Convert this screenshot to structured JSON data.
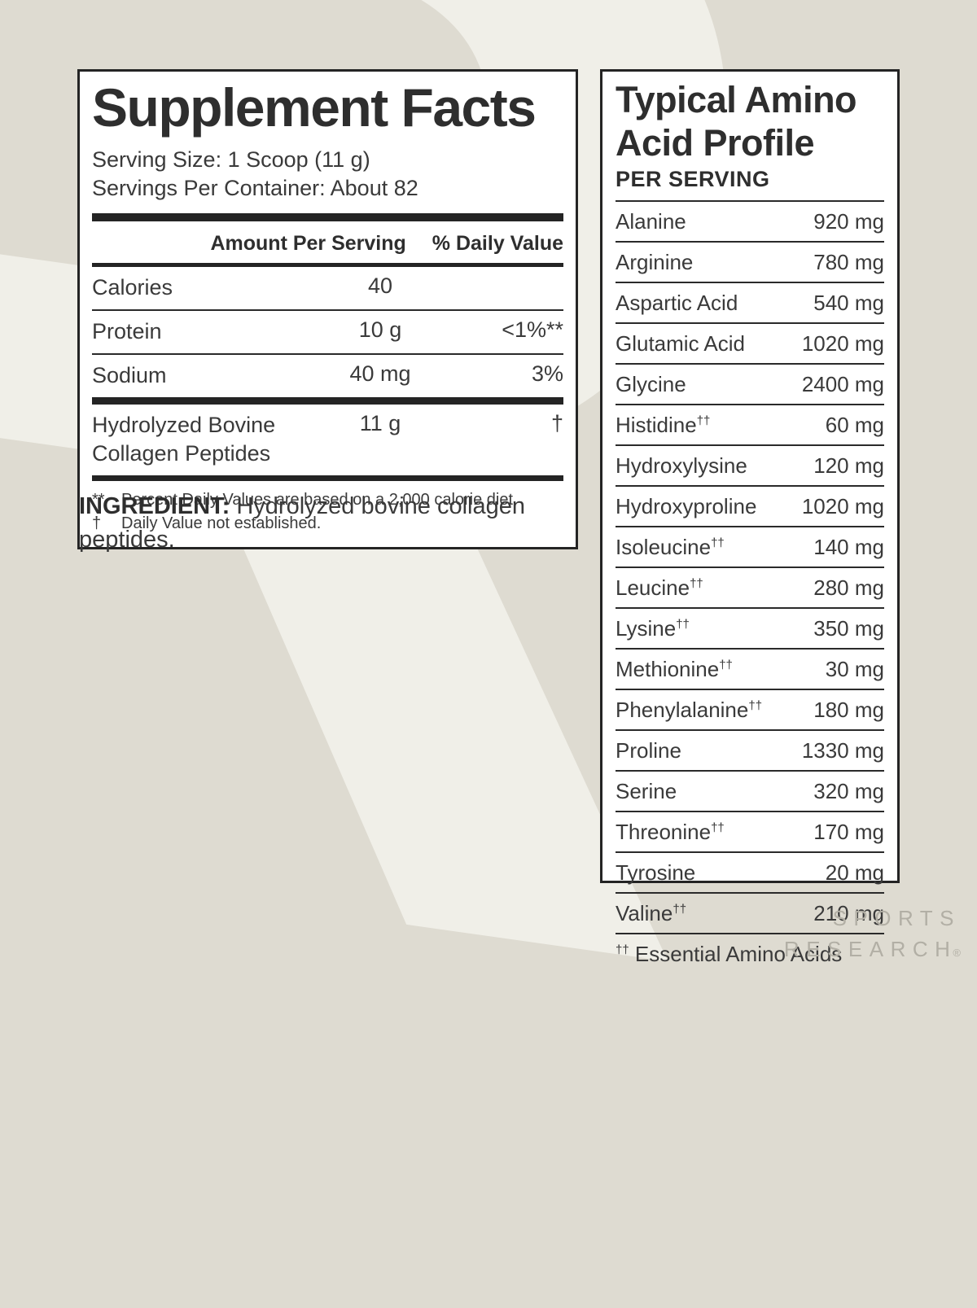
{
  "background": {
    "color": "#dedbd1",
    "watermark_letter": "R",
    "watermark_color": "#f0efe8",
    "panel_border_color": "#242424",
    "text_color": "#3a3a3a",
    "logo_color": "#b2afa5"
  },
  "supplement_facts": {
    "title": "Supplement Facts",
    "serving_size": "Serving Size: 1 Scoop (11 g)",
    "servings_per_container": "Servings Per Container: About 82",
    "header": {
      "amount": "Amount Per Serving",
      "daily_value": "% Daily Value"
    },
    "rows": [
      {
        "name": "Calories",
        "amount": "40",
        "dv": ""
      },
      {
        "name": "Protein",
        "amount": "10 g",
        "dv": "<1%**"
      },
      {
        "name": "Sodium",
        "amount": "40 mg",
        "dv": "3%"
      },
      {
        "name": "Hydrolyzed Bovine Collagen Peptides",
        "amount": "11 g",
        "dv": "†",
        "emphasis_divider": true
      }
    ],
    "footnotes": [
      {
        "marker": "**",
        "text": "Percent Daily Values are based on a 2,000 calorie diet."
      },
      {
        "marker": "†",
        "text": "Daily Value not established."
      }
    ]
  },
  "ingredient": {
    "label": "INGREDIENT:",
    "text": "Hydrolyzed bovine collagen peptides."
  },
  "amino_profile": {
    "title_line1": "Typical Amino",
    "title_line2": "Acid Profile",
    "subtitle": "PER SERVING",
    "rows": [
      {
        "name": "Alanine",
        "sup": "",
        "value": "920 mg"
      },
      {
        "name": "Arginine",
        "sup": "",
        "value": "780 mg"
      },
      {
        "name": "Aspartic Acid",
        "sup": "",
        "value": "540 mg"
      },
      {
        "name": "Glutamic Acid",
        "sup": "",
        "value": "1020 mg"
      },
      {
        "name": "Glycine",
        "sup": "",
        "value": "2400 mg"
      },
      {
        "name": "Histidine",
        "sup": "††",
        "value": "60 mg"
      },
      {
        "name": "Hydroxylysine",
        "sup": "",
        "value": "120 mg"
      },
      {
        "name": "Hydroxyproline",
        "sup": "",
        "value": "1020 mg"
      },
      {
        "name": "Isoleucine",
        "sup": "††",
        "value": "140 mg"
      },
      {
        "name": "Leucine",
        "sup": "††",
        "value": "280 mg"
      },
      {
        "name": "Lysine",
        "sup": "††",
        "value": "350 mg"
      },
      {
        "name": "Methionine",
        "sup": "††",
        "value": "30 mg"
      },
      {
        "name": "Phenylalanine",
        "sup": "††",
        "value": "180 mg"
      },
      {
        "name": "Proline",
        "sup": "",
        "value": "1330 mg"
      },
      {
        "name": "Serine",
        "sup": "",
        "value": "320 mg"
      },
      {
        "name": "Threonine",
        "sup": "††",
        "value": "170 mg"
      },
      {
        "name": "Tyrosine",
        "sup": "",
        "value": "20 mg"
      },
      {
        "name": "Valine",
        "sup": "††",
        "value": "210 mg"
      }
    ],
    "footnote": {
      "sup": "††",
      "text": "Essential Amino Acids"
    }
  },
  "logo": {
    "line1": "SPORTS",
    "line2": "RESEARCH",
    "registered": "®"
  }
}
